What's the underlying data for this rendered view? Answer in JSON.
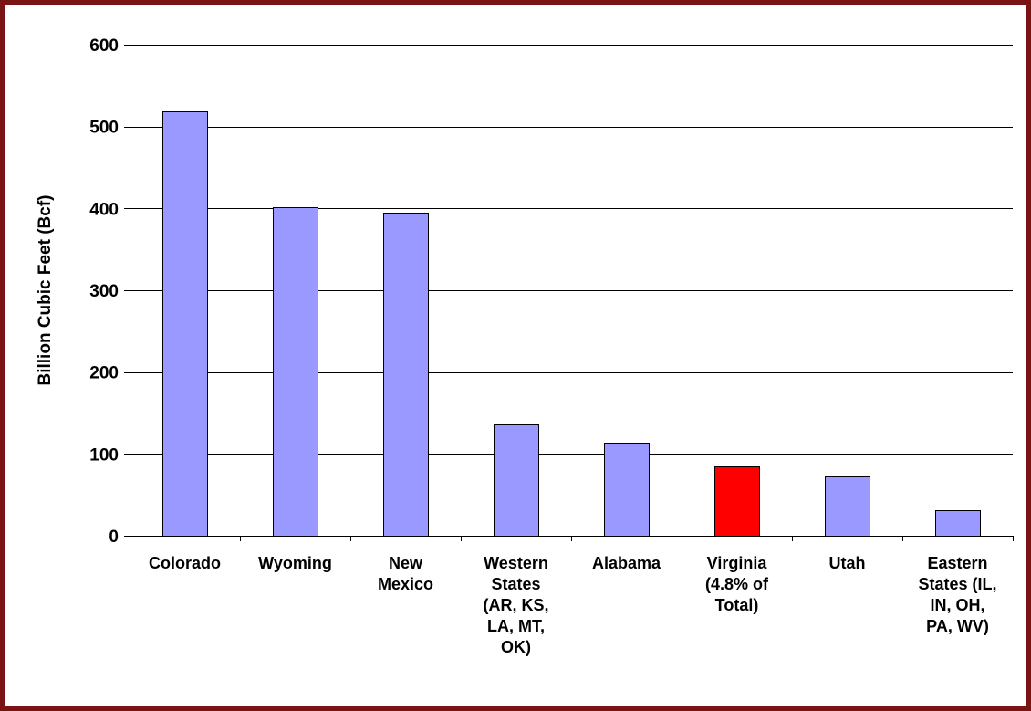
{
  "chart_data": {
    "type": "bar",
    "title": "",
    "xlabel": "",
    "ylabel": "Billion Cubic Feet (Bcf)",
    "ylim": [
      0,
      600
    ],
    "yticks": [
      0,
      100,
      200,
      300,
      400,
      500,
      600
    ],
    "grid": true,
    "categories": [
      [
        "Colorado"
      ],
      [
        "Wyoming"
      ],
      [
        "New",
        "Mexico"
      ],
      [
        "Western",
        "States",
        "(AR, KS,",
        "LA, MT,",
        "OK)"
      ],
      [
        "Alabama"
      ],
      [
        "Virginia",
        "(4.8% of",
        "Total)"
      ],
      [
        "Utah"
      ],
      [
        "Eastern",
        "States (IL,",
        "IN, OH,",
        "PA, WV)"
      ]
    ],
    "values": [
      519,
      401,
      395,
      136,
      114,
      85,
      73,
      31
    ],
    "colors": [
      "#9999ff",
      "#9999ff",
      "#9999ff",
      "#9999ff",
      "#9999ff",
      "#ff0000",
      "#9999ff",
      "#9999ff"
    ]
  }
}
